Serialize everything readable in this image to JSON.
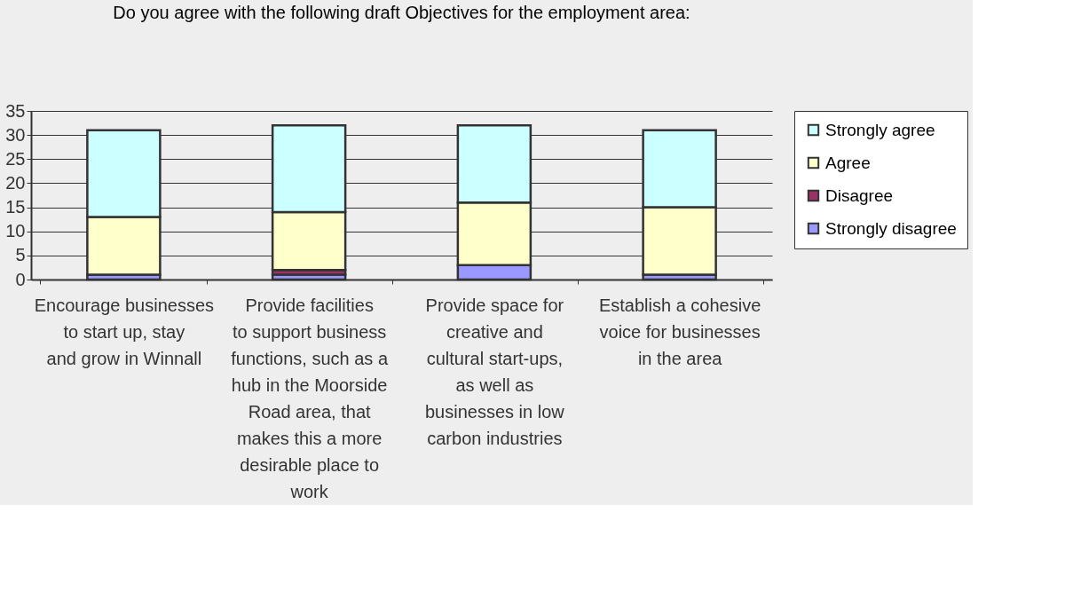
{
  "chart_data": {
    "type": "bar",
    "title": "Do you agree with the following draft Objectives for the employment area:",
    "categories": [
      "Encourage businesses to start up, stay and grow in Winnall",
      "Provide facilities to support business functions, such as a hub in the Moorside Road area, that makes this a more desirable place to work",
      "Provide space for creative and cultural start-ups, as well as businesses in low carbon industries",
      "Establish a cohesive voice for businesses in the area"
    ],
    "stacked": true,
    "series": [
      {
        "name": "Strongly disagree",
        "color": "#9999ff",
        "values": [
          1,
          1,
          3,
          1
        ]
      },
      {
        "name": "Disagree",
        "color": "#993366",
        "values": [
          0,
          1,
          0,
          0
        ]
      },
      {
        "name": "Agree",
        "color": "#ffffcc",
        "values": [
          12,
          12,
          13,
          14
        ]
      },
      {
        "name": "Strongly agree",
        "color": "#ccffff",
        "values": [
          18,
          18,
          16,
          16
        ]
      }
    ],
    "ylim": [
      0,
      35
    ],
    "yticks": [
      0,
      5,
      10,
      15,
      20,
      25,
      30,
      35
    ],
    "grid": "y",
    "legend": "right"
  }
}
